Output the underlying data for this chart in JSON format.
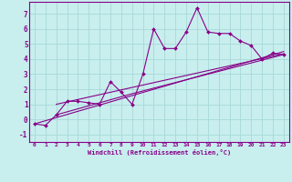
{
  "xlabel": "Windchill (Refroidissement éolien,°C)",
  "bg_color": "#c8eeee",
  "grid_color": "#a8d8d8",
  "line_color": "#880088",
  "xlim": [
    -0.5,
    23.5
  ],
  "ylim": [
    -1.5,
    7.8
  ],
  "yticks": [
    -1,
    0,
    1,
    2,
    3,
    4,
    5,
    6,
    7
  ],
  "xticks": [
    0,
    1,
    2,
    3,
    4,
    5,
    6,
    7,
    8,
    9,
    10,
    11,
    12,
    13,
    14,
    15,
    16,
    17,
    18,
    19,
    20,
    21,
    22,
    23
  ],
  "scatter_x": [
    0,
    1,
    2,
    3,
    4,
    5,
    6,
    7,
    8,
    9,
    10,
    11,
    12,
    13,
    14,
    15,
    16,
    17,
    18,
    19,
    20,
    21,
    22,
    23
  ],
  "scatter_y": [
    -0.3,
    -0.4,
    0.3,
    1.2,
    1.2,
    1.1,
    1.0,
    2.5,
    1.8,
    1.0,
    3.0,
    6.0,
    4.7,
    4.7,
    5.8,
    7.4,
    5.8,
    5.7,
    5.7,
    5.2,
    4.9,
    4.0,
    4.4,
    4.3
  ],
  "line1_x": [
    0,
    23
  ],
  "line1_y": [
    -0.3,
    4.5
  ],
  "line2_x": [
    2,
    23
  ],
  "line2_y": [
    1.0,
    4.35
  ],
  "line3_x": [
    2,
    9,
    23
  ],
  "line3_y": [
    0.3,
    1.7,
    4.3
  ]
}
